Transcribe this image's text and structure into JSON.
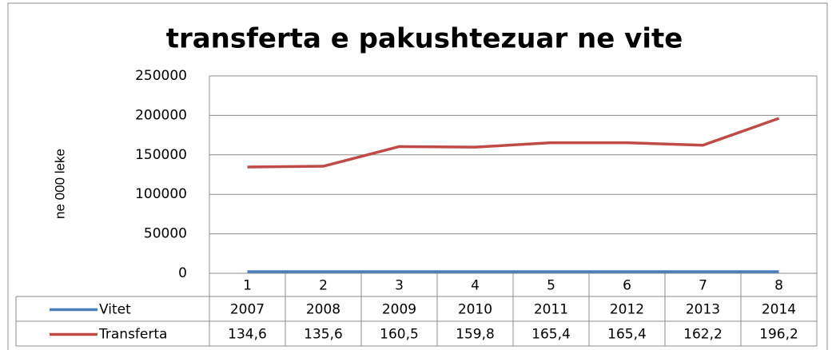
{
  "chart_data": {
    "type": "line",
    "title": "transferta e pakushtezuar ne vite",
    "y_label": "ne 000 leke",
    "categories": [
      "1",
      "2",
      "3",
      "4",
      "5",
      "6",
      "7",
      "8"
    ],
    "series": [
      {
        "name": "Vitet",
        "color": "#4a7ebb",
        "values": [
          2007,
          2008,
          2009,
          2010,
          2011,
          2012,
          2013,
          2014
        ]
      },
      {
        "name": "Transferta",
        "color": "#be4b48",
        "values": [
          134600,
          135600,
          160500,
          159800,
          165400,
          165400,
          162200,
          196200
        ],
        "value_labels": [
          "134,6",
          "135,6",
          "160,5",
          "159,8",
          "165,4",
          "165,4",
          "162,2",
          "196,2"
        ]
      }
    ],
    "ylim": [
      0,
      250000
    ],
    "yticks": [
      0,
      50000,
      100000,
      150000,
      200000,
      250000
    ],
    "grid": true,
    "data_table": true
  }
}
